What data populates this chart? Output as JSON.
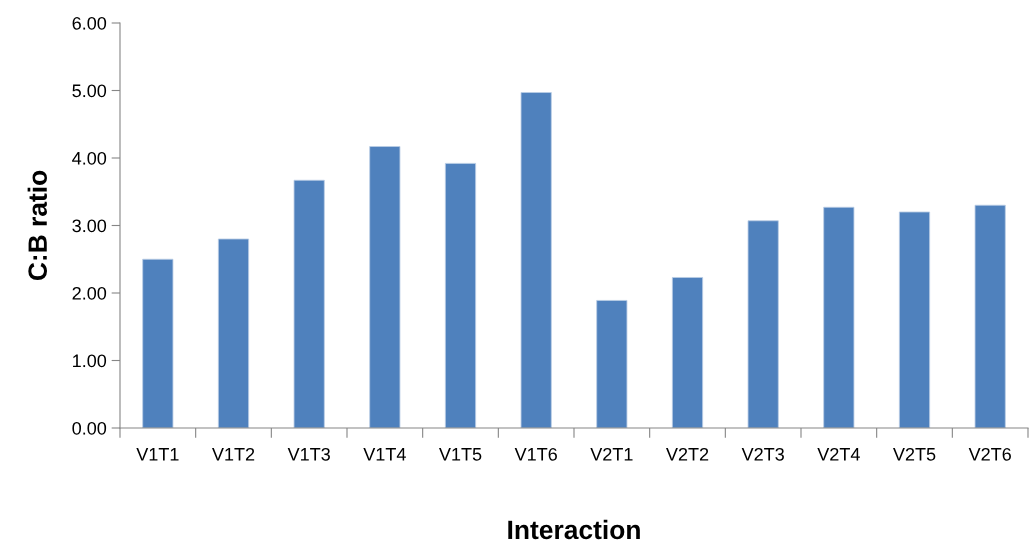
{
  "chart_data": {
    "type": "bar",
    "xlabel": "Interaction",
    "ylabel": "C:B ratio",
    "categories": [
      "V1T1",
      "V1T2",
      "V1T3",
      "V1T4",
      "V1T5",
      "V1T6",
      "V2T1",
      "V2T2",
      "V2T3",
      "V2T4",
      "V2T5",
      "V2T6"
    ],
    "values": [
      2.5,
      2.8,
      3.67,
      4.17,
      3.92,
      4.97,
      1.89,
      2.23,
      3.07,
      3.27,
      3.2,
      3.3
    ],
    "color": "#4f81bd",
    "ylim": [
      0,
      6
    ],
    "yticks": [
      {
        "value": 0,
        "label": "0.00"
      },
      {
        "value": 1,
        "label": "1.00"
      },
      {
        "value": 2,
        "label": "2.00"
      },
      {
        "value": 3,
        "label": "3.00"
      },
      {
        "value": 4,
        "label": "4.00"
      },
      {
        "value": 5,
        "label": "5.00"
      },
      {
        "value": 6,
        "label": "6.00"
      }
    ],
    "grid": false,
    "legend": false
  }
}
